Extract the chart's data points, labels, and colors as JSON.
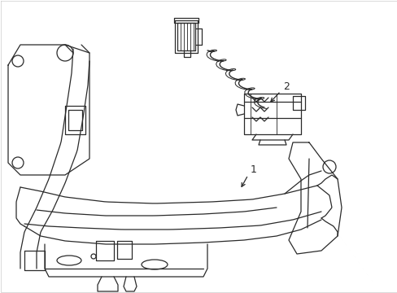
{
  "background_color": "#ffffff",
  "line_color": "#2a2a2a",
  "line_width": 0.9,
  "label_1": "1",
  "label_2": "2",
  "fig_width": 4.89,
  "fig_height": 3.6,
  "dpi": 100,
  "border_color": "#cccccc"
}
